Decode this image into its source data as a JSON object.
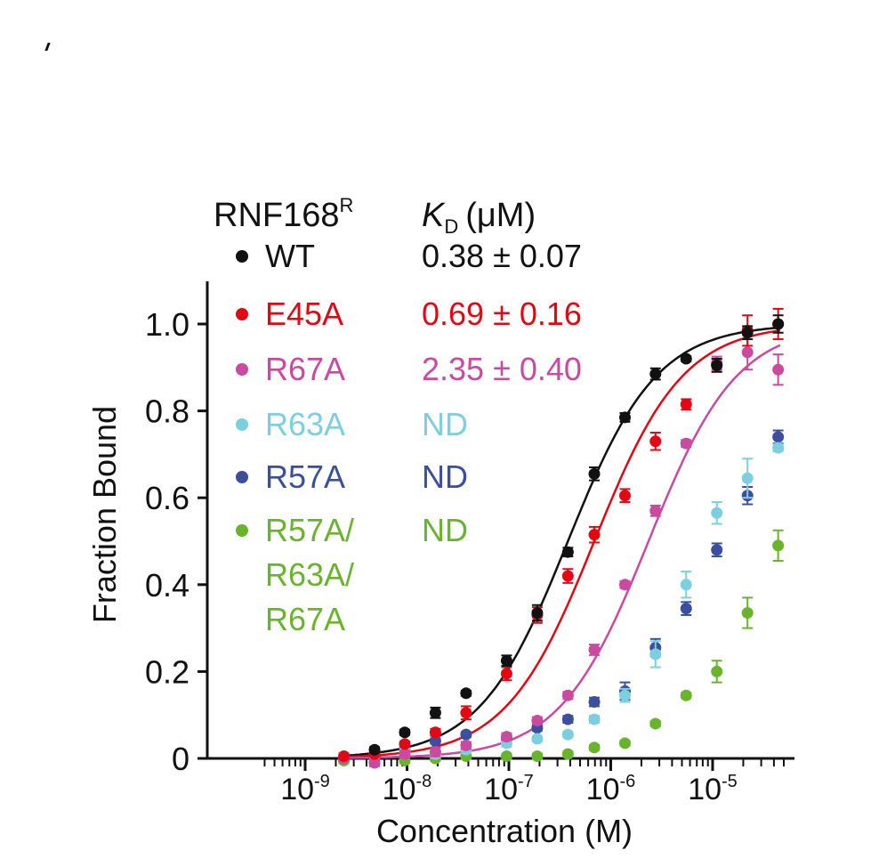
{
  "chart_data": {
    "type": "scatter",
    "xlabel": "Concentration (M)",
    "ylabel": "Fraction Bound",
    "xscale": "log",
    "xlim": [
      4e-10,
      5.5e-05
    ],
    "ylim": [
      0,
      1.1
    ],
    "y_ticks": [
      0,
      0.2,
      0.4,
      0.6,
      0.8,
      1.0
    ],
    "y_tick_labels": [
      "0",
      "0.2",
      "0.4",
      "0.6",
      "0.8",
      "1.0"
    ],
    "x_ticks": [
      {
        "base": "10",
        "exp": "-9",
        "value": 1e-09
      },
      {
        "base": "10",
        "exp": "-8",
        "value": 1e-08
      },
      {
        "base": "10",
        "exp": "-7",
        "value": 1e-07
      },
      {
        "base": "10",
        "exp": "-6",
        "value": 1e-06
      },
      {
        "base": "10",
        "exp": "-5",
        "value": 1e-05
      }
    ],
    "legend": {
      "position": "top-left",
      "header": {
        "name": "RNF168",
        "name_sup": "R",
        "kd_symbol": "K",
        "kd_sub": "D",
        "kd_unit": "(μM)"
      }
    },
    "series": [
      {
        "key": "wt",
        "name": "WT",
        "kd": "0.38 ± 0.07",
        "color": "#111111",
        "fit_kd_uM": 0.38,
        "points": [
          {
            "x": 4.8e-09,
            "y": 0.02,
            "err": 0.006
          },
          {
            "x": 9.5e-09,
            "y": 0.06,
            "err": 0.006
          },
          {
            "x": 1.9e-08,
            "y": 0.105,
            "err": 0.012
          },
          {
            "x": 3.8e-08,
            "y": 0.15,
            "err": 0.006
          },
          {
            "x": 9.5e-08,
            "y": 0.225,
            "err": 0.012
          },
          {
            "x": 1.9e-07,
            "y": 0.335,
            "err": 0.018
          },
          {
            "x": 3.8e-07,
            "y": 0.475,
            "err": 0.01
          },
          {
            "x": 6.9e-07,
            "y": 0.655,
            "err": 0.015
          },
          {
            "x": 1.38e-06,
            "y": 0.785,
            "err": 0.01
          },
          {
            "x": 2.75e-06,
            "y": 0.885,
            "err": 0.013
          },
          {
            "x": 5.5e-06,
            "y": 0.92,
            "err": 0.006
          },
          {
            "x": 1.1e-05,
            "y": 0.905,
            "err": 0.015
          },
          {
            "x": 2.2e-05,
            "y": 0.98,
            "err": 0.015
          },
          {
            "x": 4.4e-05,
            "y": 1.0,
            "err": 0.02
          }
        ]
      },
      {
        "key": "e45a",
        "name": "E45A",
        "kd": "0.69 ± 0.16",
        "color": "#e30613",
        "fit_kd_uM": 0.69,
        "points": [
          {
            "x": 2.4e-09,
            "y": 0.005,
            "err": 0.006
          },
          {
            "x": 4.8e-09,
            "y": 0.01,
            "err": 0.006
          },
          {
            "x": 9.5e-09,
            "y": 0.033,
            "err": 0.006
          },
          {
            "x": 1.9e-08,
            "y": 0.06,
            "err": 0.008
          },
          {
            "x": 3.8e-08,
            "y": 0.105,
            "err": 0.015
          },
          {
            "x": 9.5e-08,
            "y": 0.195,
            "err": 0.015
          },
          {
            "x": 1.9e-07,
            "y": 0.33,
            "err": 0.018
          },
          {
            "x": 3.8e-07,
            "y": 0.42,
            "err": 0.016
          },
          {
            "x": 6.9e-07,
            "y": 0.515,
            "err": 0.018
          },
          {
            "x": 1.38e-06,
            "y": 0.605,
            "err": 0.015
          },
          {
            "x": 2.75e-06,
            "y": 0.73,
            "err": 0.02
          },
          {
            "x": 5.5e-06,
            "y": 0.815,
            "err": 0.012
          },
          {
            "x": 1.1e-05,
            "y": 0.905,
            "err": 0.015
          },
          {
            "x": 2.2e-05,
            "y": 0.985,
            "err": 0.035
          },
          {
            "x": 4.4e-05,
            "y": 1.0,
            "err": 0.035
          }
        ]
      },
      {
        "key": "r67a",
        "name": "R67A",
        "kd": "2.35 ± 0.40",
        "color": "#c94a9e",
        "fit_kd_uM": 2.35,
        "points": [
          {
            "x": 2.4e-09,
            "y": 0.0,
            "err": 0.006
          },
          {
            "x": 4.8e-09,
            "y": -0.01,
            "err": 0.008
          },
          {
            "x": 9.5e-09,
            "y": 0.01,
            "err": 0.008
          },
          {
            "x": 1.9e-08,
            "y": 0.015,
            "err": 0.01
          },
          {
            "x": 3.8e-08,
            "y": 0.03,
            "err": 0.008
          },
          {
            "x": 9.5e-08,
            "y": 0.05,
            "err": 0.008
          },
          {
            "x": 1.9e-07,
            "y": 0.087,
            "err": 0.008
          },
          {
            "x": 3.8e-07,
            "y": 0.145,
            "err": 0.008
          },
          {
            "x": 6.9e-07,
            "y": 0.25,
            "err": 0.012
          },
          {
            "x": 1.38e-06,
            "y": 0.4,
            "err": 0.008
          },
          {
            "x": 2.75e-06,
            "y": 0.57,
            "err": 0.012
          },
          {
            "x": 5.5e-06,
            "y": 0.725,
            "err": 0.008
          },
          {
            "x": 1.1e-05,
            "y": 0.91,
            "err": 0.015
          },
          {
            "x": 2.2e-05,
            "y": 0.935,
            "err": 0.04
          },
          {
            "x": 4.4e-05,
            "y": 0.895,
            "err": 0.035
          }
        ]
      },
      {
        "key": "r63a",
        "name": "R63A",
        "kd": "ND",
        "color": "#7ccfdf",
        "points": [
          {
            "x": 2.4e-09,
            "y": 0.005,
            "err": 0.008
          },
          {
            "x": 4.8e-09,
            "y": 0.01,
            "err": 0.008
          },
          {
            "x": 9.5e-09,
            "y": 0.015,
            "err": 0.008
          },
          {
            "x": 1.9e-08,
            "y": 0.01,
            "err": 0.008
          },
          {
            "x": 3.8e-08,
            "y": 0.02,
            "err": 0.008
          },
          {
            "x": 9.5e-08,
            "y": 0.035,
            "err": 0.008
          },
          {
            "x": 1.9e-07,
            "y": 0.045,
            "err": 0.006
          },
          {
            "x": 3.8e-07,
            "y": 0.055,
            "err": 0.006
          },
          {
            "x": 6.9e-07,
            "y": 0.09,
            "err": 0.008
          },
          {
            "x": 1.38e-06,
            "y": 0.145,
            "err": 0.015
          },
          {
            "x": 2.75e-06,
            "y": 0.24,
            "err": 0.03
          },
          {
            "x": 5.5e-06,
            "y": 0.4,
            "err": 0.03
          },
          {
            "x": 1.1e-05,
            "y": 0.565,
            "err": 0.025
          },
          {
            "x": 2.2e-05,
            "y": 0.645,
            "err": 0.045
          },
          {
            "x": 4.4e-05,
            "y": 0.715,
            "err": 0.008
          }
        ]
      },
      {
        "key": "r57a",
        "name": "R57A",
        "kd": "ND",
        "color": "#3b4f9e",
        "points": [
          {
            "x": 2.4e-09,
            "y": 0.0,
            "err": 0.006
          },
          {
            "x": 4.8e-09,
            "y": 0.005,
            "err": 0.006
          },
          {
            "x": 9.5e-09,
            "y": 0.02,
            "err": 0.006
          },
          {
            "x": 1.9e-08,
            "y": 0.04,
            "err": 0.006
          },
          {
            "x": 3.8e-08,
            "y": 0.055,
            "err": 0.006
          },
          {
            "x": 9.5e-08,
            "y": 0.045,
            "err": 0.006
          },
          {
            "x": 1.9e-07,
            "y": 0.07,
            "err": 0.006
          },
          {
            "x": 3.8e-07,
            "y": 0.09,
            "err": 0.008
          },
          {
            "x": 6.9e-07,
            "y": 0.13,
            "err": 0.01
          },
          {
            "x": 1.38e-06,
            "y": 0.155,
            "err": 0.02
          },
          {
            "x": 2.75e-06,
            "y": 0.255,
            "err": 0.02
          },
          {
            "x": 5.5e-06,
            "y": 0.345,
            "err": 0.015
          },
          {
            "x": 1.1e-05,
            "y": 0.48,
            "err": 0.015
          },
          {
            "x": 2.2e-05,
            "y": 0.605,
            "err": 0.02
          },
          {
            "x": 4.4e-05,
            "y": 0.74,
            "err": 0.015
          }
        ]
      },
      {
        "key": "triple",
        "name": "R57A/ R63A/ R67A",
        "name_lines": [
          "R57A/",
          "R63A/",
          "R67A"
        ],
        "kd": "ND",
        "color": "#6ab42d",
        "points": [
          {
            "x": 2.4e-09,
            "y": -0.005,
            "err": 0.006
          },
          {
            "x": 4.8e-09,
            "y": -0.01,
            "err": 0.006
          },
          {
            "x": 9.5e-09,
            "y": -0.005,
            "err": 0.006
          },
          {
            "x": 1.9e-08,
            "y": 0.0,
            "err": 0.006
          },
          {
            "x": 3.8e-08,
            "y": 0.005,
            "err": 0.006
          },
          {
            "x": 9.5e-08,
            "y": 0.005,
            "err": 0.006
          },
          {
            "x": 1.9e-07,
            "y": 0.005,
            "err": 0.006
          },
          {
            "x": 3.8e-07,
            "y": 0.01,
            "err": 0.006
          },
          {
            "x": 6.9e-07,
            "y": 0.025,
            "err": 0.006
          },
          {
            "x": 1.38e-06,
            "y": 0.035,
            "err": 0.006
          },
          {
            "x": 2.75e-06,
            "y": 0.08,
            "err": 0.006
          },
          {
            "x": 5.5e-06,
            "y": 0.145,
            "err": 0.006
          },
          {
            "x": 1.1e-05,
            "y": 0.2,
            "err": 0.025
          },
          {
            "x": 2.2e-05,
            "y": 0.335,
            "err": 0.035
          },
          {
            "x": 4.4e-05,
            "y": 0.49,
            "err": 0.035
          }
        ]
      }
    ]
  }
}
